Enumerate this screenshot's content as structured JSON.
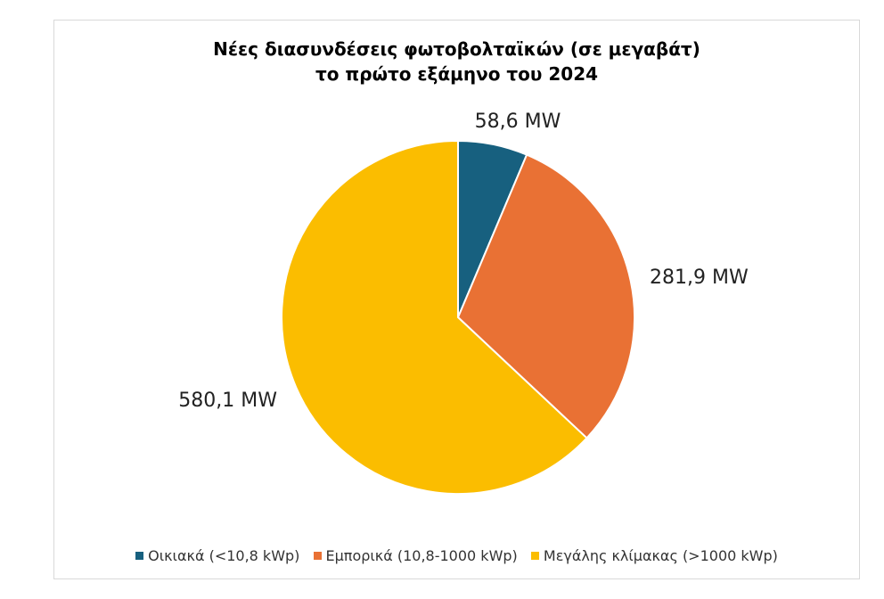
{
  "chart_data": {
    "type": "pie",
    "title": [
      "Νέες διασυνδέσεις φωτοβολταϊκών (σε μεγαβάτ)",
      "το πρώτο εξάμηνο του 2024"
    ],
    "categories": [
      "Οικιακά (<10,8 kWp)",
      "Εμπορικά (10,8-1000 kWp)",
      "Μεγάλης κλίμακας (>1000 kWp)"
    ],
    "values": [
      58.6,
      281.9,
      580.1
    ],
    "data_labels": [
      "58,6 MW",
      "281,9 MW",
      "580,1 MW"
    ],
    "colors": [
      "#17607f",
      "#e97134",
      "#fbbd00"
    ],
    "legend_position": "bottom",
    "start_angle": "12 o'clock",
    "direction": "clockwise"
  }
}
